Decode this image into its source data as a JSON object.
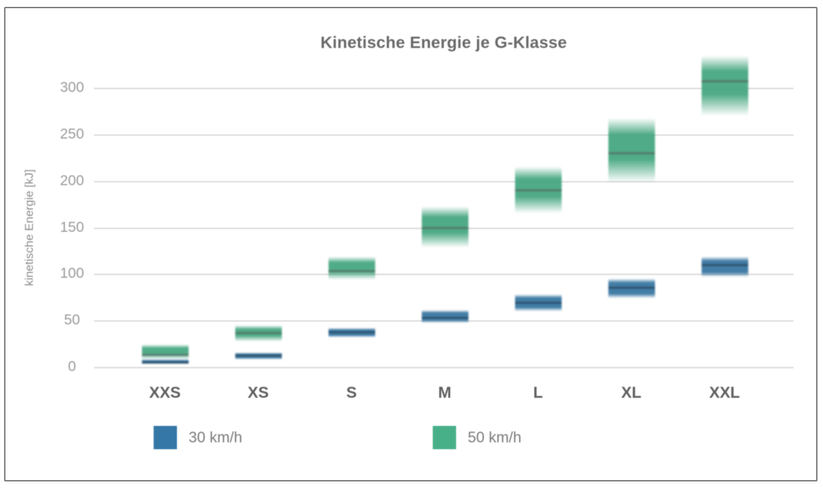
{
  "chart_data": {
    "type": "floating-bar",
    "title": "Kinetische Energie je G-Klasse",
    "ylabel": "kinetische Energie [kJ]",
    "ylim": [
      0,
      300
    ],
    "yticks": [
      0,
      50,
      100,
      150,
      200,
      250,
      300
    ],
    "grid": "horizontal",
    "legend_position": "bottom",
    "categories": [
      "XXS",
      "XS",
      "S",
      "M",
      "L",
      "XL",
      "XXL"
    ],
    "series": [
      {
        "name": "30 km/h",
        "color": "#33739f",
        "line_color": "rgba(28,42,58,0.5)",
        "values": [
          {
            "min": 3.7,
            "mean": 5.4,
            "max": 8.5
          },
          {
            "min": 9.1,
            "mean": 12.8,
            "max": 16.0
          },
          {
            "min": 32.2,
            "mean": 37.7,
            "max": 42.9
          },
          {
            "min": 47.7,
            "mean": 53.6,
            "max": 61.9
          },
          {
            "min": 60.4,
            "mean": 69.4,
            "max": 78.6
          },
          {
            "min": 74.4,
            "mean": 85.8,
            "max": 95.8
          },
          {
            "min": 97.6,
            "mean": 110.0,
            "max": 119.8
          }
        ]
      },
      {
        "name": "50 km/h",
        "color": "#43a57f",
        "line_color": "rgba(82,92,88,0.62)",
        "values": [
          {
            "min": 8.5,
            "mean": 13.6,
            "max": 25.1
          },
          {
            "min": 27.7,
            "mean": 37.4,
            "max": 45.4
          },
          {
            "min": 94.2,
            "mean": 103.8,
            "max": 119.6
          },
          {
            "min": 129.3,
            "mean": 150.0,
            "max": 173.6
          },
          {
            "min": 166.2,
            "mean": 190.4,
            "max": 216.0
          },
          {
            "min": 199.0,
            "mean": 230.1,
            "max": 268.5
          },
          {
            "min": 271.0,
            "mean": 307.9,
            "max": 335.3
          }
        ]
      }
    ],
    "legend": [
      {
        "label": "30 km/h",
        "color": "#3578a8"
      },
      {
        "label": "50 km/h",
        "color": "#48b089"
      }
    ]
  }
}
